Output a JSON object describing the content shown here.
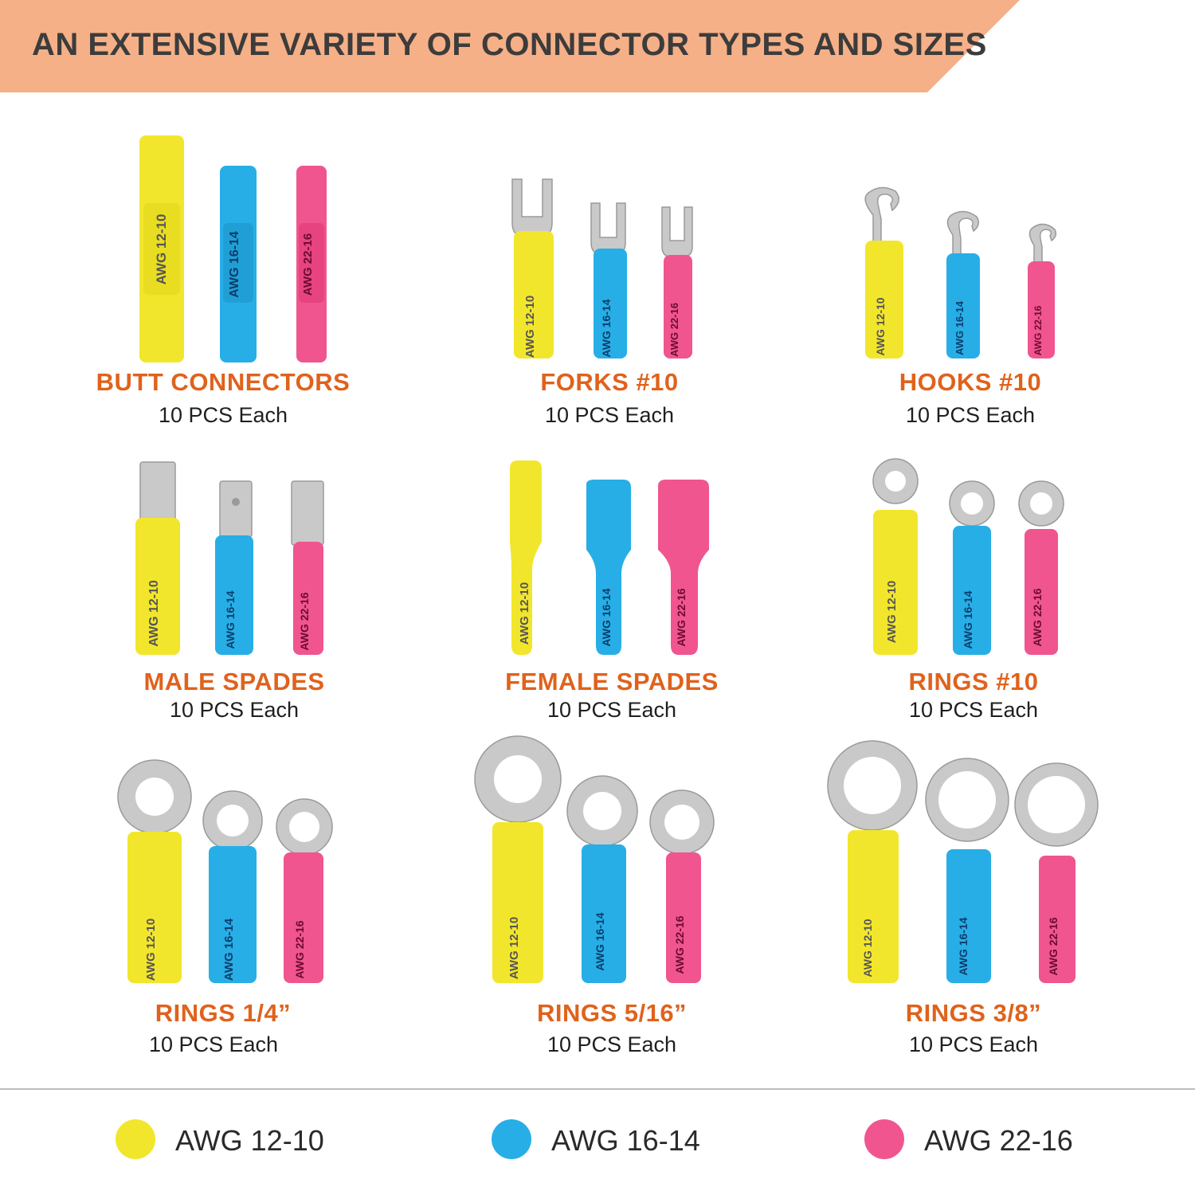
{
  "banner": {
    "title": "AN EXTENSIVE VARIETY OF CONNECTOR TYPES AND SIZES",
    "color": "#f6b087"
  },
  "colors": {
    "yellow": "#f2e62c",
    "blue": "#27aee6",
    "pink": "#f0558f",
    "metal": "#c9c9c9",
    "title_orange": "#e0621c"
  },
  "connectors": [
    {
      "title": "BUTT CONNECTORS",
      "subtitle": "10 PCS Each",
      "kind": "butt"
    },
    {
      "title": "FORKS #10",
      "subtitle": "10 PCS Each",
      "kind": "fork"
    },
    {
      "title": "HOOKS #10",
      "subtitle": "10 PCS Each",
      "kind": "hook"
    },
    {
      "title": "MALE SPADES",
      "subtitle": "10 PCS Each",
      "kind": "male"
    },
    {
      "title": "FEMALE SPADES",
      "subtitle": "10 PCS Each",
      "kind": "female"
    },
    {
      "title": "RINGS #10",
      "subtitle": "10 PCS Each",
      "kind": "ring-small"
    },
    {
      "title": "RINGS 1/4”",
      "subtitle": "10 PCS Each",
      "kind": "ring"
    },
    {
      "title": "RINGS 5/16”",
      "subtitle": "10 PCS Each",
      "kind": "ring"
    },
    {
      "title": "RINGS 3/8”",
      "subtitle": "10 PCS Each",
      "kind": "ring-large"
    }
  ],
  "sleeve_labels": [
    "AWG 12-10",
    "AWG 16-14",
    "AWG 22-16"
  ],
  "legend": [
    {
      "label": "AWG 12-10",
      "color": "#f2e62c"
    },
    {
      "label": "AWG 16-14",
      "color": "#27aee6"
    },
    {
      "label": "AWG 22-16",
      "color": "#f0558f"
    }
  ]
}
